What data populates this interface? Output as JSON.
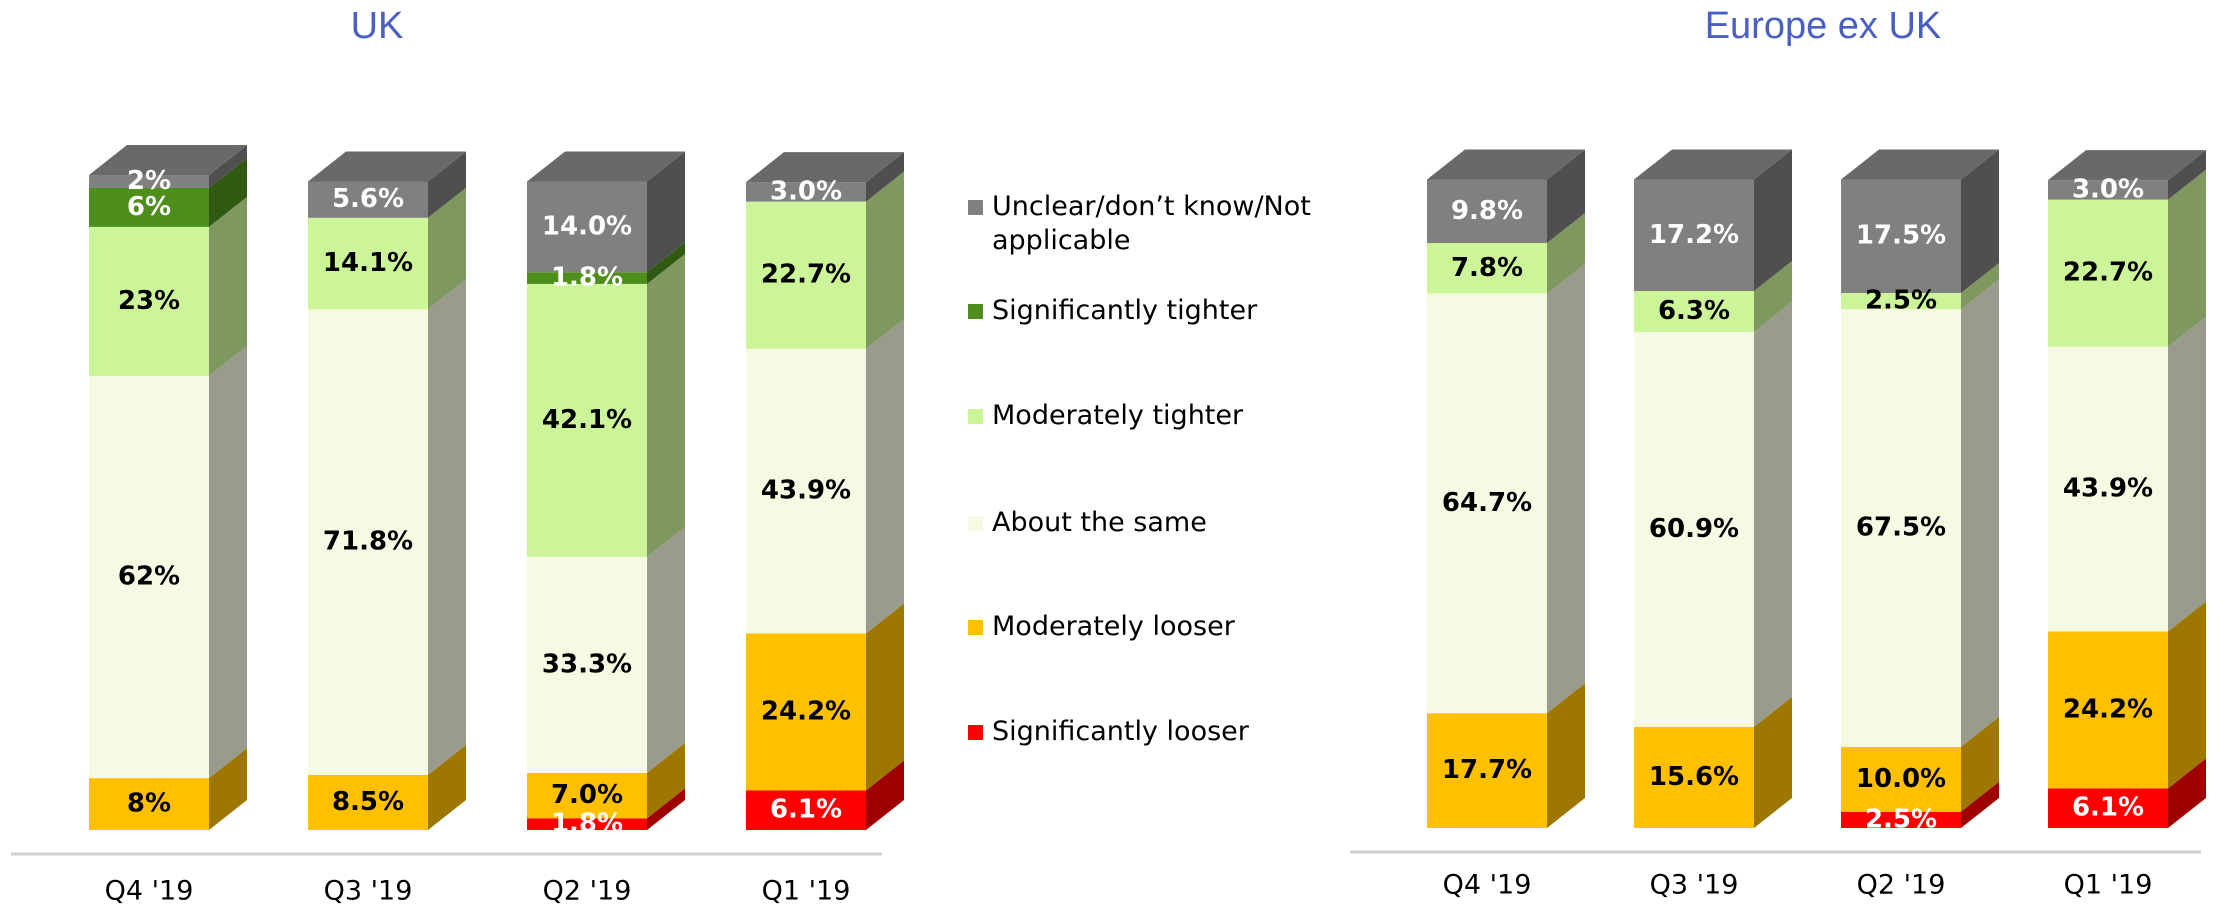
{
  "chart_data": [
    {
      "type": "bar",
      "stacked": true,
      "title": "UK",
      "categories": [
        "Q4 '19",
        "Q3 '19",
        "Q2 '19",
        "Q1 '19"
      ],
      "series": [
        {
          "name": "Significantly looser",
          "color": "#ff0000",
          "values": [
            null,
            null,
            1.8,
            6.1
          ],
          "value_labels": [
            null,
            null,
            "1.8%",
            "6.1%"
          ]
        },
        {
          "name": "Moderately looser",
          "color": "#ffc000",
          "values": [
            8,
            8.5,
            7.0,
            24.2
          ],
          "value_labels": [
            "8%",
            "8.5%",
            "7.0%",
            "24.2%"
          ]
        },
        {
          "name": "About the same",
          "color": "#f7fae3",
          "values": [
            62,
            71.8,
            33.3,
            43.9
          ],
          "value_labels": [
            "62%",
            "71.8%",
            "33.3%",
            "43.9%"
          ]
        },
        {
          "name": "Moderately tighter",
          "color": "#ccf59a",
          "values": [
            23,
            14.1,
            42.1,
            22.7
          ],
          "value_labels": [
            "23%",
            "14.1%",
            "42.1%",
            "22.7%"
          ]
        },
        {
          "name": "Significantly tighter",
          "color": "#4e8f1c",
          "values": [
            6,
            null,
            1.8,
            null
          ],
          "value_labels": [
            "6%",
            null,
            "1.8%",
            null
          ]
        },
        {
          "name": "Unclear/don’t know/Not applicable",
          "color": "#808080",
          "values": [
            2,
            5.6,
            14.0,
            3.0
          ],
          "value_labels": [
            "2%",
            "5.6%",
            "14.0%",
            "3.0%"
          ]
        }
      ]
    },
    {
      "type": "bar",
      "stacked": true,
      "title": "Europe ex UK",
      "categories": [
        "Q4 '19",
        "Q3 '19",
        "Q2 '19",
        "Q1 '19"
      ],
      "series": [
        {
          "color": "#ff0000",
          "values": [
            null,
            null,
            2.5,
            6.1
          ],
          "value_labels": [
            null,
            null,
            "2.5%",
            "6.1%"
          ]
        },
        {
          "color": "#ffc000",
          "values": [
            17.7,
            15.6,
            10.0,
            24.2
          ],
          "value_labels": [
            "17.7%",
            "15.6%",
            "10.0%",
            "24.2%"
          ]
        },
        {
          "color": "#f7fae3",
          "values": [
            64.7,
            60.9,
            67.5,
            43.9
          ],
          "value_labels": [
            "64.7%",
            "60.9%",
            "67.5%",
            "43.9%"
          ]
        },
        {
          "color": "#ccf59a",
          "values": [
            7.8,
            6.3,
            2.5,
            22.7
          ],
          "value_labels": [
            "7.8%",
            "6.3%",
            "2.5%",
            "22.7%"
          ]
        },
        {
          "color": "#4e8f1c",
          "values": [
            null,
            null,
            null,
            null
          ],
          "value_labels": [
            null,
            null,
            null,
            null
          ]
        },
        {
          "color": "#808080",
          "values": [
            9.8,
            17.2,
            17.5,
            3.0
          ],
          "value_labels": [
            "9.8%",
            "17.2%",
            "17.5%",
            "3.0%"
          ]
        }
      ]
    }
  ]
}
